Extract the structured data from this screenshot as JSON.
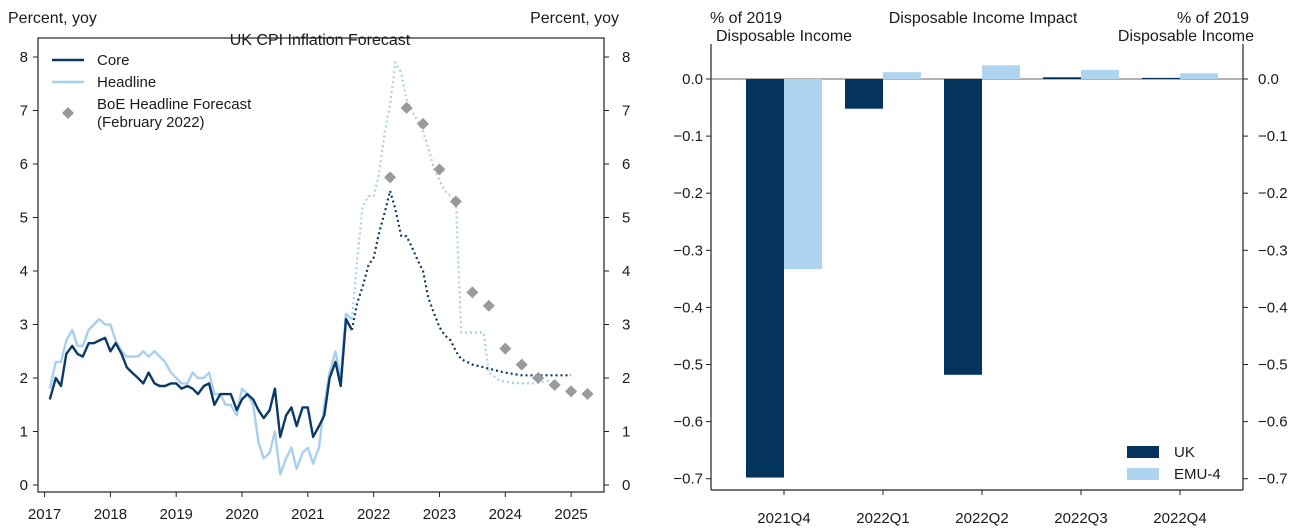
{
  "chart_data": [
    {
      "type": "line",
      "title": "UK CPI Inflation Forecast",
      "ylabel_left": "Percent, yoy",
      "ylabel_right": "Percent, yoy",
      "ylim": [
        0,
        8
      ],
      "yticks": [
        "0",
        "1",
        "2",
        "3",
        "4",
        "5",
        "6",
        "7",
        "8"
      ],
      "xlim": [
        2016.9,
        2025.5
      ],
      "xticks": [
        "2017",
        "2018",
        "2019",
        "2020",
        "2021",
        "2022",
        "2023",
        "2024",
        "2025"
      ],
      "colors": {
        "core": "#0b3966",
        "headline": "#a8d0ee",
        "boe": "#9a9a9a"
      },
      "series": [
        {
          "name": "Core",
          "style": "solid",
          "x": [
            2017.08,
            2017.17,
            2017.25,
            2017.33,
            2017.42,
            2017.5,
            2017.58,
            2017.67,
            2017.75,
            2017.83,
            2017.92,
            2018.0,
            2018.08,
            2018.17,
            2018.25,
            2018.33,
            2018.42,
            2018.5,
            2018.58,
            2018.67,
            2018.75,
            2018.83,
            2018.92,
            2019.0,
            2019.08,
            2019.17,
            2019.25,
            2019.33,
            2019.42,
            2019.5,
            2019.58,
            2019.67,
            2019.75,
            2019.83,
            2019.92,
            2020.0,
            2020.08,
            2020.17,
            2020.25,
            2020.33,
            2020.42,
            2020.5,
            2020.58,
            2020.67,
            2020.75,
            2020.83,
            2020.92,
            2021.0,
            2021.08,
            2021.17,
            2021.25,
            2021.33,
            2021.42,
            2021.5,
            2021.58,
            2021.67
          ],
          "values": [
            1.6,
            2.0,
            1.85,
            2.45,
            2.6,
            2.45,
            2.4,
            2.65,
            2.65,
            2.7,
            2.75,
            2.5,
            2.65,
            2.45,
            2.2,
            2.1,
            2.0,
            1.9,
            2.1,
            1.9,
            1.85,
            1.85,
            1.9,
            1.9,
            1.8,
            1.85,
            1.8,
            1.7,
            1.85,
            1.9,
            1.5,
            1.7,
            1.7,
            1.7,
            1.4,
            1.6,
            1.7,
            1.6,
            1.4,
            1.25,
            1.4,
            1.8,
            0.9,
            1.3,
            1.45,
            1.1,
            1.45,
            1.45,
            0.9,
            1.1,
            1.3,
            2.0,
            2.3,
            1.85,
            3.1,
            2.9
          ]
        },
        {
          "name": "Core forecast",
          "style": "dotted",
          "x": [
            2021.67,
            2021.75,
            2021.83,
            2021.92,
            2022.0,
            2022.08,
            2022.17,
            2022.25,
            2022.33,
            2022.42,
            2022.5,
            2022.58,
            2022.67,
            2022.75,
            2022.83,
            2022.92,
            2023.0,
            2023.08,
            2023.17,
            2023.25,
            2023.33,
            2023.42,
            2023.5,
            2023.67,
            2023.83,
            2024.0,
            2024.25,
            2024.5,
            2024.75,
            2025.0
          ],
          "values": [
            2.9,
            3.4,
            3.7,
            4.1,
            4.25,
            4.7,
            5.1,
            5.5,
            5.15,
            4.65,
            4.65,
            4.45,
            4.2,
            4.0,
            3.5,
            3.2,
            2.95,
            2.8,
            2.7,
            2.5,
            2.35,
            2.3,
            2.25,
            2.2,
            2.15,
            2.1,
            2.05,
            2.05,
            2.05,
            2.05
          ]
        },
        {
          "name": "Headline",
          "style": "solid",
          "x": [
            2017.08,
            2017.17,
            2017.25,
            2017.33,
            2017.42,
            2017.5,
            2017.58,
            2017.67,
            2017.75,
            2017.83,
            2017.92,
            2018.0,
            2018.08,
            2018.17,
            2018.25,
            2018.33,
            2018.42,
            2018.5,
            2018.58,
            2018.67,
            2018.75,
            2018.83,
            2018.92,
            2019.0,
            2019.08,
            2019.17,
            2019.25,
            2019.33,
            2019.42,
            2019.5,
            2019.58,
            2019.67,
            2019.75,
            2019.83,
            2019.92,
            2020.0,
            2020.08,
            2020.17,
            2020.25,
            2020.33,
            2020.42,
            2020.5,
            2020.58,
            2020.67,
            2020.75,
            2020.83,
            2020.92,
            2021.0,
            2021.08,
            2021.17,
            2021.25,
            2021.33,
            2021.42,
            2021.5,
            2021.58,
            2021.67
          ],
          "values": [
            1.8,
            2.3,
            2.3,
            2.7,
            2.9,
            2.6,
            2.6,
            2.9,
            3.0,
            3.1,
            3.0,
            3.0,
            2.7,
            2.5,
            2.4,
            2.4,
            2.4,
            2.5,
            2.4,
            2.5,
            2.4,
            2.3,
            2.1,
            2.0,
            1.9,
            1.9,
            2.1,
            2.0,
            2.0,
            2.1,
            1.7,
            1.7,
            1.5,
            1.5,
            1.3,
            1.8,
            1.7,
            1.5,
            0.8,
            0.5,
            0.6,
            1.0,
            0.2,
            0.5,
            0.7,
            0.3,
            0.6,
            0.7,
            0.4,
            0.7,
            1.5,
            2.1,
            2.5,
            2.0,
            3.2,
            3.1
          ]
        },
        {
          "name": "Headline forecast",
          "style": "dotted",
          "x": [
            2021.67,
            2021.75,
            2021.83,
            2021.92,
            2022.0,
            2022.08,
            2022.17,
            2022.25,
            2022.33,
            2022.42,
            2022.5,
            2022.58,
            2022.67,
            2022.75,
            2022.83,
            2022.92,
            2023.0,
            2023.08,
            2023.17,
            2023.25,
            2023.33,
            2023.5,
            2023.67,
            2023.75,
            2023.92,
            2024.17,
            2024.42,
            2024.67
          ],
          "values": [
            3.1,
            4.2,
            5.2,
            5.4,
            5.4,
            5.8,
            6.6,
            7.1,
            7.9,
            7.7,
            7.2,
            7.0,
            6.8,
            6.6,
            6.3,
            5.9,
            5.7,
            5.5,
            5.4,
            5.3,
            2.85,
            2.85,
            2.85,
            2.1,
            1.95,
            1.9,
            1.9,
            1.95
          ]
        },
        {
          "name": "BoE Headline Forecast (February 2022)",
          "style": "marker",
          "x": [
            2022.25,
            2022.5,
            2022.75,
            2023.0,
            2023.25,
            2023.5,
            2023.75,
            2024.0,
            2024.25,
            2024.5,
            2024.75,
            2025.0,
            2025.25
          ],
          "values": [
            5.75,
            7.05,
            6.75,
            5.9,
            5.3,
            3.6,
            3.35,
            2.55,
            2.25,
            2.0,
            1.87,
            1.75,
            1.7
          ]
        }
      ],
      "legend": [
        {
          "key": "core",
          "lines": [
            "Core"
          ]
        },
        {
          "key": "headline",
          "lines": [
            "Headline"
          ]
        },
        {
          "key": "boe",
          "lines": [
            "BoE Headline Forecast",
            "(February 2022)"
          ]
        }
      ],
      "legend_position": "top-left"
    },
    {
      "type": "bar",
      "title": "Disposable Income Impact",
      "ylabel_left": [
        "% of 2019",
        "Disposable Income"
      ],
      "ylabel_right": [
        "% of 2019",
        "Disposable Income"
      ],
      "ylim": [
        -0.73,
        0.06
      ],
      "yticks": [
        "0.0",
        "−0.1",
        "−0.2",
        "−0.3",
        "−0.4",
        "−0.5",
        "−0.6",
        "−0.7"
      ],
      "categories": [
        "2021Q4",
        "2022Q1",
        "2022Q2",
        "2022Q3",
        "2022Q4"
      ],
      "colors": {
        "uk": "#04335e",
        "emu4": "#aed4f0"
      },
      "series": [
        {
          "name": "UK",
          "values": [
            -0.698,
            -0.052,
            -0.518,
            0.003,
            0.002
          ]
        },
        {
          "name": "EMU-4",
          "values": [
            -0.333,
            0.012,
            0.024,
            0.016,
            0.01
          ]
        }
      ],
      "legend_position": "bottom-right"
    }
  ]
}
